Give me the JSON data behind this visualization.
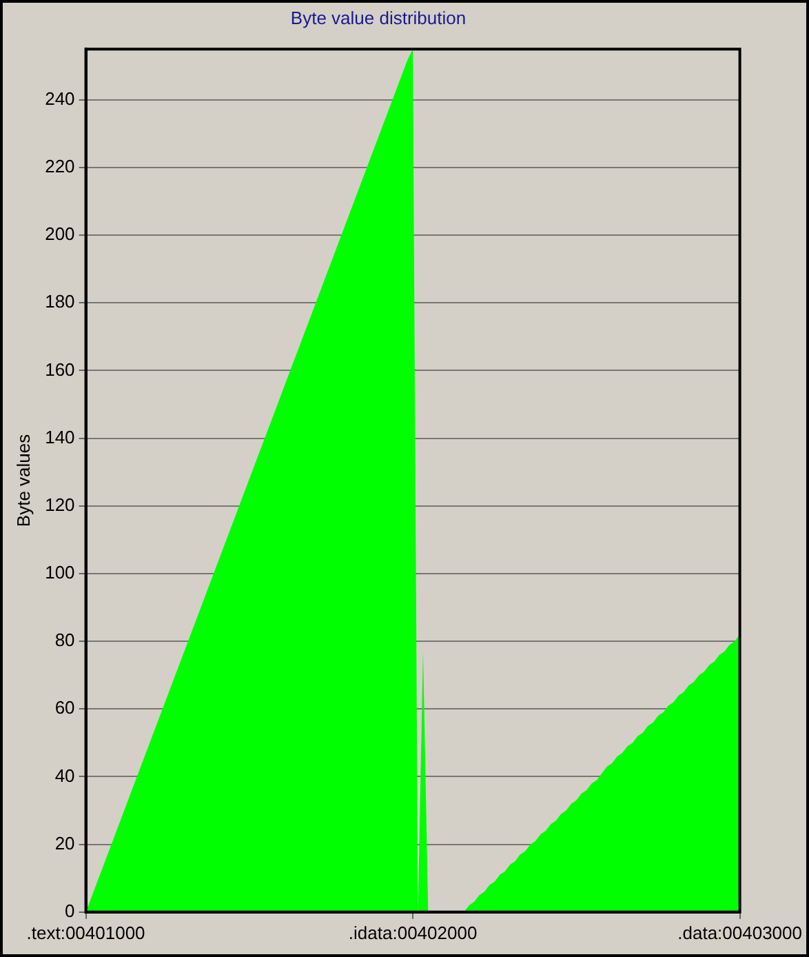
{
  "chart_data": {
    "type": "area",
    "title": "Byte value distribution",
    "ylabel": "Byte values",
    "categories": [
      ".text:00401000",
      null,
      null,
      null,
      null,
      null,
      null,
      null,
      null,
      null,
      null,
      null,
      null,
      null,
      null,
      null,
      null,
      null,
      null,
      null,
      null,
      null,
      null,
      null,
      null,
      null,
      null,
      null,
      null,
      null,
      null,
      null,
      null,
      null,
      null,
      null,
      null,
      null,
      null,
      null,
      null,
      null,
      null,
      null,
      null,
      null,
      null,
      null,
      null,
      null,
      null,
      null,
      null,
      null,
      null,
      null,
      null,
      null,
      null,
      null,
      null,
      null,
      null,
      null,
      ".idata:00402000",
      null,
      null,
      null,
      null,
      null,
      null,
      null,
      null,
      null,
      null,
      null,
      null,
      null,
      null,
      null,
      null,
      null,
      null,
      null,
      null,
      null,
      null,
      null,
      null,
      null,
      null,
      null,
      null,
      null,
      null,
      null,
      null,
      null,
      null,
      null,
      null,
      null,
      null,
      null,
      null,
      null,
      null,
      null,
      null,
      null,
      null,
      null,
      null,
      null,
      null,
      null,
      null,
      null,
      null,
      null,
      null,
      null,
      null,
      null,
      null,
      null,
      null,
      null,
      ".data:00403000"
    ],
    "series": [
      {
        "color": "#00ff00",
        "values": [
          0,
          4,
          8,
          12,
          16,
          20,
          24,
          28,
          32,
          36,
          40,
          44,
          48,
          52,
          56,
          60,
          64,
          68,
          72,
          76,
          80,
          84,
          88,
          92,
          96,
          100,
          104,
          108,
          112,
          116,
          120,
          124,
          128,
          132,
          136,
          140,
          144,
          148,
          152,
          156,
          160,
          164,
          168,
          172,
          176,
          180,
          184,
          188,
          192,
          196,
          200,
          204,
          208,
          212,
          216,
          220,
          224,
          228,
          232,
          236,
          240,
          244,
          248,
          252,
          255,
          0,
          77,
          0,
          0,
          0,
          0,
          0,
          0,
          0,
          0,
          2,
          3,
          5,
          6,
          8,
          9,
          11,
          12,
          14,
          15,
          17,
          18,
          20,
          21,
          23,
          24,
          26,
          27,
          29,
          30,
          32,
          33,
          35,
          36,
          38,
          39,
          41,
          43,
          44,
          46,
          47,
          49,
          50,
          52,
          53,
          55,
          56,
          58,
          59,
          61,
          62,
          64,
          65,
          67,
          68,
          70,
          71,
          73,
          74,
          76,
          77,
          79,
          80,
          82
        ]
      }
    ],
    "ylim": [
      0,
      255
    ],
    "yticks": [
      0,
      20,
      40,
      60,
      80,
      100,
      120,
      140,
      160,
      180,
      200,
      220,
      240
    ],
    "grid": "y",
    "legend": false
  }
}
